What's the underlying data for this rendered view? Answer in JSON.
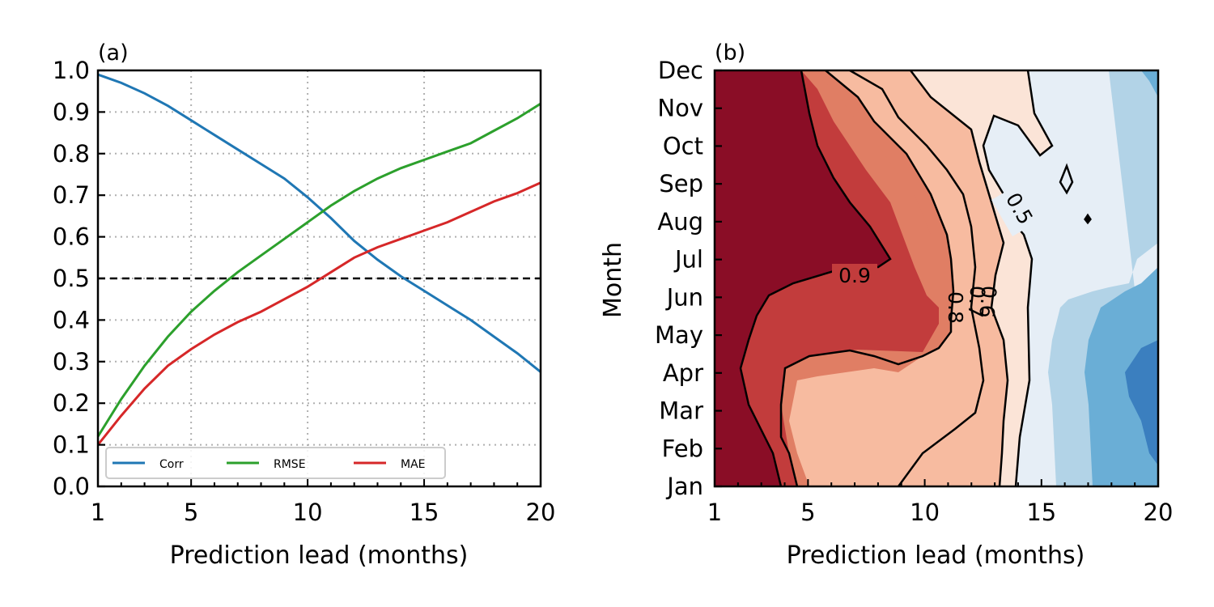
{
  "chart_data": [
    {
      "type": "line",
      "panel_label": "(a)",
      "xlabel": "Prediction lead (months)",
      "ylabel": "",
      "xlim": [
        1,
        20
      ],
      "ylim": [
        0,
        1
      ],
      "xticks": [
        1,
        5,
        10,
        15,
        20
      ],
      "yticks": [
        "0.0",
        "0.1",
        "0.2",
        "0.3",
        "0.4",
        "0.5",
        "0.6",
        "0.7",
        "0.8",
        "0.9",
        "1.0"
      ],
      "grid": true,
      "legend_position": "lower-left",
      "x": [
        1,
        2,
        3,
        4,
        5,
        6,
        7,
        8,
        9,
        10,
        11,
        12,
        13,
        14,
        15,
        16,
        17,
        18,
        19,
        20
      ],
      "series": [
        {
          "name": "Corr",
          "color": "#1f77b4",
          "values": [
            0.99,
            0.97,
            0.945,
            0.915,
            0.88,
            0.845,
            0.81,
            0.775,
            0.74,
            0.695,
            0.645,
            0.59,
            0.545,
            0.505,
            0.47,
            0.435,
            0.4,
            0.36,
            0.32,
            0.275
          ]
        },
        {
          "name": "RMSE",
          "color": "#2ca02c",
          "values": [
            0.12,
            0.21,
            0.29,
            0.36,
            0.42,
            0.47,
            0.515,
            0.555,
            0.595,
            0.635,
            0.675,
            0.71,
            0.74,
            0.765,
            0.785,
            0.805,
            0.825,
            0.855,
            0.885,
            0.92
          ]
        },
        {
          "name": "MAE",
          "color": "#d62728",
          "values": [
            0.1,
            0.17,
            0.235,
            0.29,
            0.33,
            0.365,
            0.395,
            0.42,
            0.45,
            0.48,
            0.515,
            0.55,
            0.575,
            0.595,
            0.615,
            0.635,
            0.66,
            0.685,
            0.705,
            0.73
          ]
        }
      ],
      "reference_line": {
        "y": 0.5,
        "style": "dashed",
        "color": "#000000"
      }
    },
    {
      "type": "heatmap",
      "panel_label": "(b)",
      "xlabel": "Prediction lead (months)",
      "ylabel": "Month",
      "xlim": [
        1,
        20
      ],
      "xticks": [
        1,
        5,
        10,
        15,
        20
      ],
      "months": [
        "Jan",
        "Feb",
        "Mar",
        "Apr",
        "May",
        "Jun",
        "Jul",
        "Aug",
        "Sep",
        "Oct",
        "Nov",
        "Dec"
      ],
      "contour_labels": [
        "0.9",
        "0.8",
        "0.7",
        "0.6",
        "0.5"
      ],
      "colors": [
        "#67001f",
        "#b2182b",
        "#d6604d",
        "#f4a582",
        "#fddbc7",
        "#f7f7f7",
        "#d1e5f0",
        "#92c5de",
        "#4393c3",
        "#2166ac"
      ]
    }
  ]
}
